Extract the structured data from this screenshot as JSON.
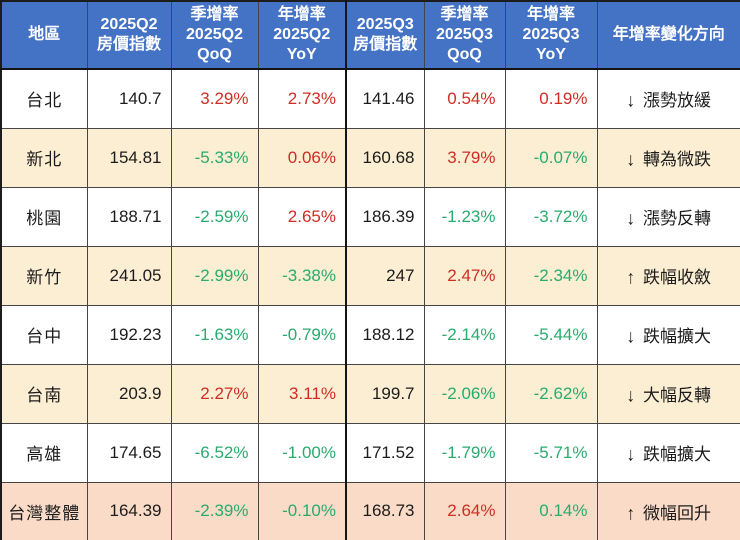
{
  "chart_data": {
    "type": "table",
    "title": "",
    "columns": [
      "地區",
      "2025Q2 房價指數",
      "季增率 2025Q2 QoQ",
      "年增率 2025Q2 YoY",
      "2025Q3 房價指數",
      "季增率 2025Q3 QoQ",
      "年增率 2025Q3 YoY",
      "年增率變化方向"
    ],
    "rows": [
      [
        "台北",
        140.7,
        "3.29%",
        "2.73%",
        141.46,
        "0.54%",
        "0.19%",
        "↓ 漲勢放緩"
      ],
      [
        "新北",
        154.81,
        "-5.33%",
        "0.06%",
        160.68,
        "3.79%",
        "-0.07%",
        "↓ 轉為微跌"
      ],
      [
        "桃園",
        188.71,
        "-2.59%",
        "2.65%",
        186.39,
        "-1.23%",
        "-3.72%",
        "↓ 漲勢反轉"
      ],
      [
        "新竹",
        241.05,
        "-2.99%",
        "-3.38%",
        247,
        "2.47%",
        "-2.34%",
        "↑ 跌幅收斂"
      ],
      [
        "台中",
        192.23,
        "-1.63%",
        "-0.79%",
        188.12,
        "-2.14%",
        "-5.44%",
        "↓ 跌幅擴大"
      ],
      [
        "台南",
        203.9,
        "2.27%",
        "3.11%",
        199.7,
        "-2.06%",
        "-2.62%",
        "↓ 大幅反轉"
      ],
      [
        "高雄",
        174.65,
        "-6.52%",
        "-1.00%",
        171.52,
        "-1.79%",
        "-5.71%",
        "↓ 跌幅擴大"
      ],
      [
        "台灣整體",
        164.39,
        "-2.39%",
        "-0.10%",
        168.73,
        "2.64%",
        "0.14%",
        "↑ 微幅回升"
      ]
    ]
  },
  "table": {
    "header_bg": "#4472c4",
    "header_text_color": "#ffffff",
    "value_colors": {
      "red": "#cf2d23",
      "green": "#29ab6e",
      "black": "#1c1c1c"
    },
    "row_backgrounds": {
      "white": "#ffffff",
      "cream": "#fbeed3",
      "pink": "#fadbc8"
    },
    "columns": [
      "地區",
      "2025Q2\n房價指數",
      "季增率\n2025Q2\nQoQ",
      "年增率\n2025Q2\nYoY",
      "2025Q3\n房價指數",
      "季增率\n2025Q3\nQoQ",
      "年增率\n2025Q3\nYoY",
      "年增率變化方向"
    ],
    "rows": [
      {
        "region": "台北",
        "q2_index": "140.7",
        "q2_qoq": "3.29%",
        "q2_qoq_color": "red",
        "q2_yoy": "2.73%",
        "q2_yoy_color": "red",
        "q3_index": "141.46",
        "q3_qoq": "0.54%",
        "q3_qoq_color": "red",
        "q3_yoy": "0.19%",
        "q3_yoy_color": "red",
        "direction_arrow": "↓",
        "direction_label": "漲勢放緩",
        "bg": "white"
      },
      {
        "region": "新北",
        "q2_index": "154.81",
        "q2_qoq": "-5.33%",
        "q2_qoq_color": "green",
        "q2_yoy": "0.06%",
        "q2_yoy_color": "red",
        "q3_index": "160.68",
        "q3_qoq": "3.79%",
        "q3_qoq_color": "red",
        "q3_yoy": "-0.07%",
        "q3_yoy_color": "green",
        "direction_arrow": "↓",
        "direction_label": "轉為微跌",
        "bg": "cream"
      },
      {
        "region": "桃園",
        "q2_index": "188.71",
        "q2_qoq": "-2.59%",
        "q2_qoq_color": "green",
        "q2_yoy": "2.65%",
        "q2_yoy_color": "red",
        "q3_index": "186.39",
        "q3_qoq": "-1.23%",
        "q3_qoq_color": "green",
        "q3_yoy": "-3.72%",
        "q3_yoy_color": "green",
        "direction_arrow": "↓",
        "direction_label": "漲勢反轉",
        "bg": "white"
      },
      {
        "region": "新竹",
        "q2_index": "241.05",
        "q2_qoq": "-2.99%",
        "q2_qoq_color": "green",
        "q2_yoy": "-3.38%",
        "q2_yoy_color": "green",
        "q3_index": "247",
        "q3_qoq": "2.47%",
        "q3_qoq_color": "red",
        "q3_yoy": "-2.34%",
        "q3_yoy_color": "green",
        "direction_arrow": "↑",
        "direction_label": "跌幅收斂",
        "bg": "cream"
      },
      {
        "region": "台中",
        "q2_index": "192.23",
        "q2_qoq": "-1.63%",
        "q2_qoq_color": "green",
        "q2_yoy": "-0.79%",
        "q2_yoy_color": "green",
        "q3_index": "188.12",
        "q3_qoq": "-2.14%",
        "q3_qoq_color": "green",
        "q3_yoy": "-5.44%",
        "q3_yoy_color": "green",
        "direction_arrow": "↓",
        "direction_label": "跌幅擴大",
        "bg": "white"
      },
      {
        "region": "台南",
        "q2_index": "203.9",
        "q2_qoq": "2.27%",
        "q2_qoq_color": "red",
        "q2_yoy": "3.11%",
        "q2_yoy_color": "red",
        "q3_index": "199.7",
        "q3_qoq": "-2.06%",
        "q3_qoq_color": "green",
        "q3_yoy": "-2.62%",
        "q3_yoy_color": "green",
        "direction_arrow": "↓",
        "direction_label": "大幅反轉",
        "bg": "cream"
      },
      {
        "region": "高雄",
        "q2_index": "174.65",
        "q2_qoq": "-6.52%",
        "q2_qoq_color": "green",
        "q2_yoy": "-1.00%",
        "q2_yoy_color": "green",
        "q3_index": "171.52",
        "q3_qoq": "-1.79%",
        "q3_qoq_color": "green",
        "q3_yoy": "-5.71%",
        "q3_yoy_color": "green",
        "direction_arrow": "↓",
        "direction_label": "跌幅擴大",
        "bg": "white"
      },
      {
        "region": "台灣整體",
        "q2_index": "164.39",
        "q2_qoq": "-2.39%",
        "q2_qoq_color": "green",
        "q2_yoy": "-0.10%",
        "q2_yoy_color": "green",
        "q3_index": "168.73",
        "q3_qoq": "2.64%",
        "q3_qoq_color": "red",
        "q3_yoy": "0.14%",
        "q3_yoy_color": "green",
        "direction_arrow": "↑",
        "direction_label": "微幅回升",
        "bg": "pink"
      }
    ]
  }
}
